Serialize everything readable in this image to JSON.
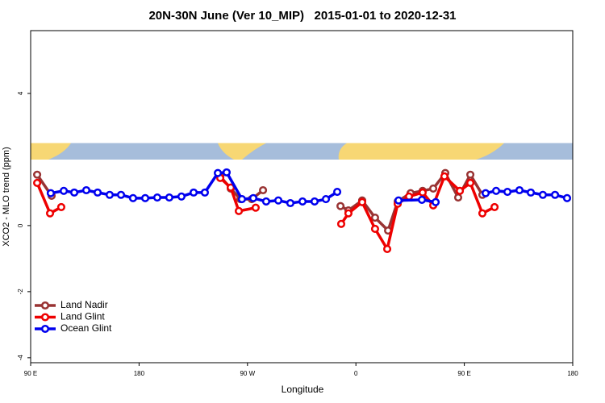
{
  "chart_data": {
    "type": "line",
    "title": "20N-30N June (Ver 10_MIP)   2015-01-01 to 2020-12-31",
    "xlabel": "Longitude",
    "ylabel": "XCO2 - MLO trend (ppm)",
    "xlim": [
      90,
      540
    ],
    "xticks": [
      {
        "value": 90,
        "label": "90 E"
      },
      {
        "value": 180,
        "label": "180"
      },
      {
        "value": 270,
        "label": "90 W"
      },
      {
        "value": 360,
        "label": "0"
      },
      {
        "value": 450,
        "label": "90 E"
      },
      {
        "value": 540,
        "label": "180"
      }
    ],
    "ylim": [
      -4.15,
      5.9
    ],
    "yticks": [
      -4,
      -2,
      0,
      4
    ],
    "legend": "bottom-left",
    "series": [
      {
        "name": "Land Nadir",
        "color": "#993333",
        "x": [
          95.4,
          107.4,
          180,
          247.4,
          256.1,
          264.1,
          273.5,
          282.9,
          340,
          347.2,
          353.8,
          365.2,
          375.9,
          386.7,
          394.7,
          405.4,
          415.4,
          424.2,
          434.2,
          444.9,
          455.0,
          465.0
        ],
        "values": [
          1.54,
          0.9,
          null,
          1.49,
          1.12,
          0.8,
          0.8,
          1.07,
          null,
          0.59,
          0.46,
          0.76,
          0.24,
          -0.15,
          0.73,
          0.98,
          1.05,
          1.12,
          1.59,
          0.85,
          1.54,
          0.93
        ]
      },
      {
        "name": "Land Glint",
        "color": "#ee0000",
        "x": [
          95.4,
          106.1,
          115.4,
          180,
          247.4,
          256.1,
          262.8,
          276.8,
          340,
          347.8,
          353.8,
          365.2,
          375.9,
          386.0,
          394.7,
          404.1,
          415.4,
          424.2,
          433.5,
          446.3,
          455.0,
          465.0,
          475.1
        ],
        "values": [
          1.29,
          0.37,
          0.56,
          null,
          1.44,
          1.15,
          0.44,
          0.54,
          null,
          0.05,
          0.37,
          0.71,
          -0.1,
          -0.71,
          0.66,
          0.88,
          1.0,
          0.61,
          1.49,
          1.05,
          1.29,
          0.37,
          0.56
        ]
      },
      {
        "name": "Ocean Glint",
        "color": "#0000ee",
        "x": [
          106.7,
          117.5,
          126.2,
          136.2,
          145.6,
          155.6,
          165.0,
          175.0,
          185.1,
          195.1,
          205.1,
          215.2,
          225.3,
          234.6,
          245.4,
          252.7,
          265.4,
          274.8,
          285.5,
          295.6,
          305.6,
          315.7,
          325.7,
          335.1,
          344.5,
          380,
          395.4,
          414.8,
          426.2,
          435,
          467.7,
          476.4,
          485.8,
          495.8,
          505.2,
          515.2,
          525.3,
          535.3
        ],
        "values": [
          0.98,
          1.05,
          1.0,
          1.07,
          1.0,
          0.93,
          0.93,
          0.83,
          0.83,
          0.85,
          0.85,
          0.88,
          1.0,
          1.0,
          1.59,
          1.61,
          0.8,
          0.83,
          0.73,
          0.76,
          0.68,
          0.73,
          0.73,
          0.8,
          1.02,
          null,
          0.76,
          0.78,
          0.71,
          null,
          0.98,
          1.05,
          1.02,
          1.07,
          1.0,
          0.93,
          0.93,
          0.83
        ]
      }
    ]
  }
}
